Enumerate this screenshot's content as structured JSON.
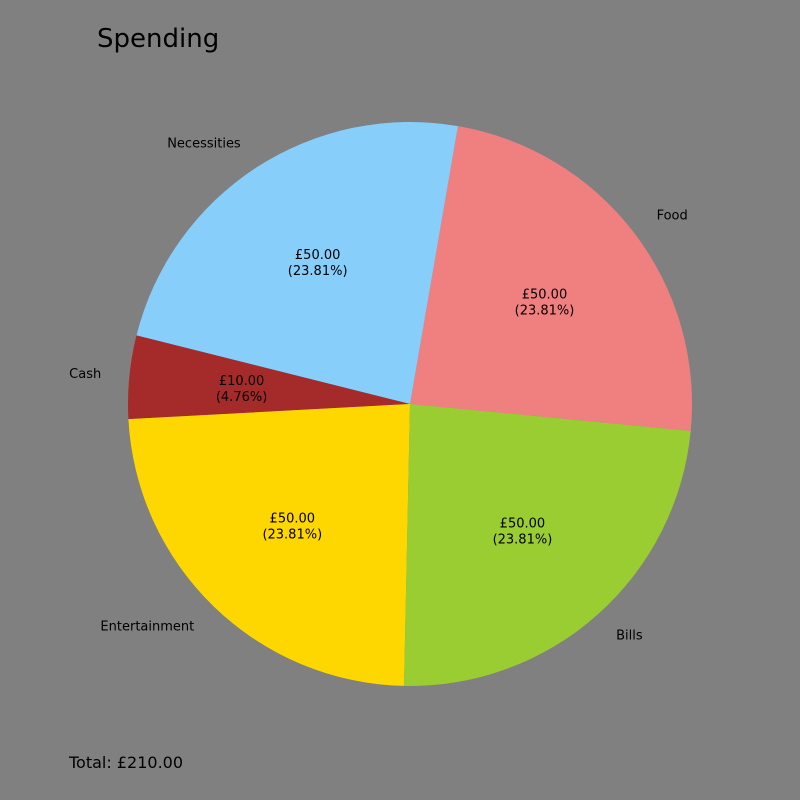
{
  "chart_data": {
    "type": "pie",
    "title": "Spending",
    "total_text": "Total: £210.00",
    "slices": [
      {
        "label": "Food",
        "value": 50,
        "value_text": "£50.00",
        "pct_text": "(23.81%)",
        "color": "#F08080"
      },
      {
        "label": "Necessities",
        "value": 50,
        "value_text": "£50.00",
        "pct_text": "(23.81%)",
        "color": "#87CEFA"
      },
      {
        "label": "Cash",
        "value": 10,
        "value_text": "£10.00",
        "pct_text": "(4.76%)",
        "color": "#A52A2A"
      },
      {
        "label": "Entertainment",
        "value": 50,
        "value_text": "£50.00",
        "pct_text": "(23.81%)",
        "color": "#FFD700"
      },
      {
        "label": "Bills",
        "value": 50,
        "value_text": "£50.00",
        "pct_text": "(23.81%)",
        "color": "#9ACD32"
      }
    ],
    "background": "#808080"
  }
}
